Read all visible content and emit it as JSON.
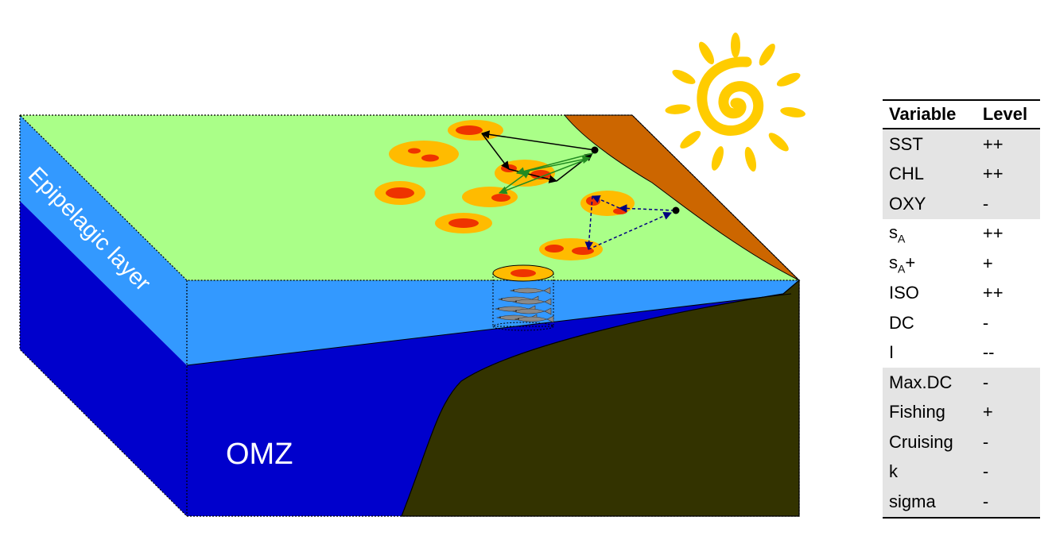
{
  "labels": {
    "epipelagic": "Epipelagic layer",
    "omz": "OMZ"
  },
  "colors": {
    "surface": "#aaff88",
    "epipelagic": "#3399ff",
    "omz": "#0000cc",
    "seafloor": "#333300",
    "coast": "#cc6600",
    "patch_outer": "#ffbb00",
    "patch_inner": "#ee3300",
    "sun": "#ffcc00",
    "arrow_black": "#000000",
    "arrow_green": "#228b22",
    "arrow_blue": "#000080"
  },
  "icons": {
    "sun": "sun-icon",
    "fish": "fish-school-icon"
  },
  "table": {
    "headers": {
      "variable": "Variable",
      "level": "Level"
    },
    "rows": [
      {
        "base": "SST",
        "sub": "",
        "suffix": "",
        "level": "++",
        "shaded": true
      },
      {
        "base": "CHL",
        "sub": "",
        "suffix": "",
        "level": "++",
        "shaded": true
      },
      {
        "base": "OXY",
        "sub": "",
        "suffix": "",
        "level": "-",
        "shaded": true
      },
      {
        "base": "s",
        "sub": "A",
        "suffix": "",
        "level": "++",
        "shaded": false
      },
      {
        "base": "s",
        "sub": "A",
        "suffix": "+",
        "level": "+",
        "shaded": false
      },
      {
        "base": "ISO",
        "sub": "",
        "suffix": "",
        "level": "++",
        "shaded": false
      },
      {
        "base": "DC",
        "sub": "",
        "suffix": "",
        "level": "-",
        "shaded": false
      },
      {
        "base": "I",
        "sub": "",
        "suffix": "",
        "level": "--",
        "shaded": false
      },
      {
        "base": "Max.DC",
        "sub": "",
        "suffix": "",
        "level": "-",
        "shaded": true
      },
      {
        "base": "Fishing",
        "sub": "",
        "suffix": "",
        "level": "+",
        "shaded": true
      },
      {
        "base": "Cruising",
        "sub": "",
        "suffix": "",
        "level": "-",
        "shaded": true
      },
      {
        "base": "k",
        "sub": "",
        "suffix": "",
        "level": "-",
        "shaded": true
      },
      {
        "base": "sigma",
        "sub": "",
        "suffix": "",
        "level": "-",
        "shaded": true
      }
    ]
  }
}
